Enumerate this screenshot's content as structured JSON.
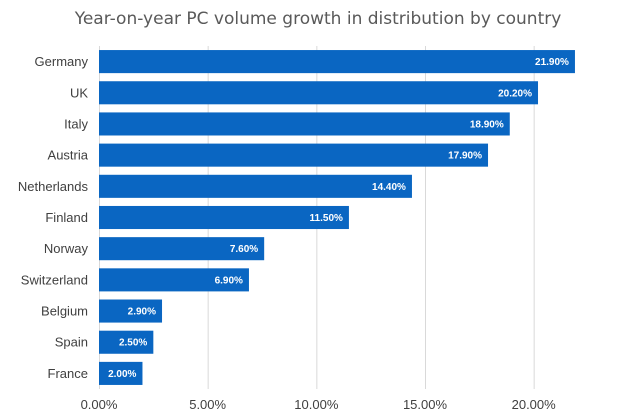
{
  "chart_data": {
    "type": "bar",
    "orientation": "horizontal",
    "title": "Year-on-year PC volume growth in distribution by country",
    "xlabel": "",
    "ylabel": "",
    "categories": [
      "Germany",
      "UK",
      "Italy",
      "Austria",
      "Netherlands",
      "Finland",
      "Norway",
      "Switzerland",
      "Belgium",
      "Spain",
      "France"
    ],
    "values": [
      21.9,
      20.2,
      18.9,
      17.9,
      14.4,
      11.5,
      7.6,
      6.9,
      2.9,
      2.5,
      2.0
    ],
    "data_labels": [
      "21.90%",
      "20.20%",
      "18.90%",
      "17.90%",
      "14.40%",
      "11.50%",
      "7.60%",
      "6.90%",
      "2.90%",
      "2.50%",
      "2.00%"
    ],
    "xlim": [
      0,
      22.5
    ],
    "x_ticks": [
      0,
      5,
      10,
      15,
      20
    ],
    "x_tick_labels": [
      "0.00%",
      "5.00%",
      "10.00%",
      "15.00%",
      "20.00%"
    ],
    "grid": "vertical",
    "legend": "none",
    "bar_color": "#0a66c2"
  }
}
